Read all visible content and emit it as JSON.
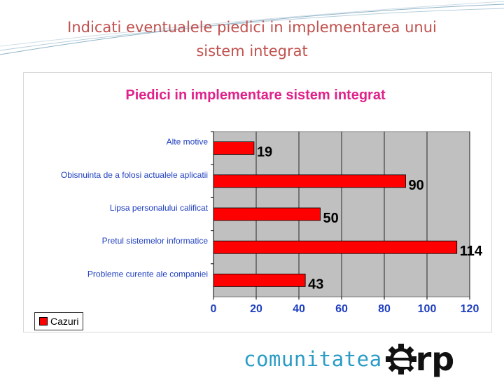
{
  "slide": {
    "title_line1": "Indicati eventualele piedici in implementarea unui",
    "title_line2": "sistem integrat"
  },
  "colors": {
    "title": "#c0504d",
    "bar": "#ff0000",
    "chart_title": "#e0218a",
    "axis_text": "#1f3fbf",
    "plot_bg": "#c0c0c0",
    "logo": "#2a9cc6"
  },
  "chart_data": {
    "type": "bar",
    "orientation": "horizontal",
    "title": "Piedici in implementare sistem integrat",
    "categories": [
      "Alte motive",
      "Obisnuinta de a folosi actualele aplicatii",
      "Lipsa personalului calificat",
      "Pretul sistemelor informatice",
      "Probleme curente ale companiei"
    ],
    "series": [
      {
        "name": "Cazuri",
        "values": [
          19,
          90,
          50,
          114,
          43
        ]
      }
    ],
    "xlim": [
      0,
      120
    ],
    "xticks": [
      0,
      20,
      40,
      60,
      80,
      100,
      120
    ],
    "grid": true,
    "legend_position": "bottom-left"
  },
  "logo": {
    "word": "comunitatea",
    "letters": "rp",
    "mark_icon": "gear-e-icon"
  }
}
